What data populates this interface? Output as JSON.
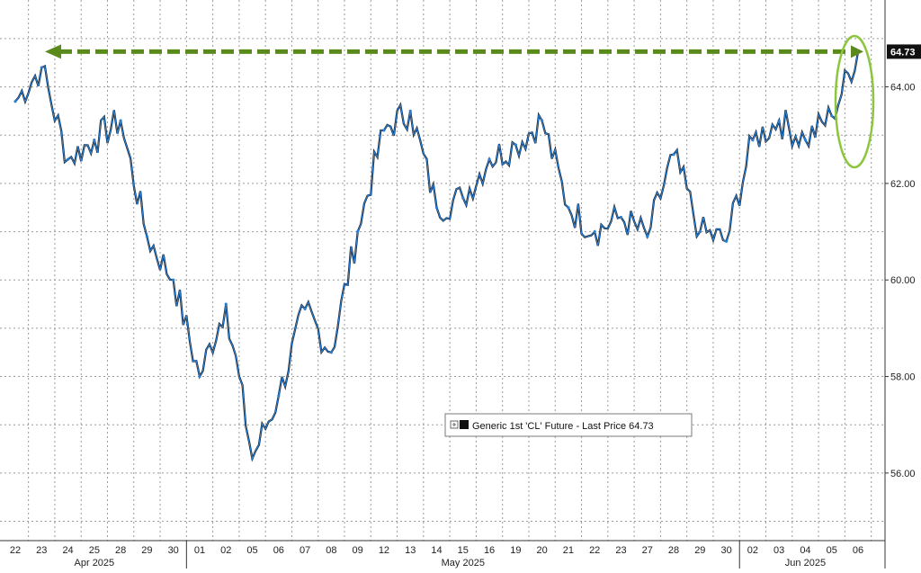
{
  "chart_data": {
    "type": "line",
    "title": "",
    "xlabel": "",
    "ylabel": "",
    "ylim": [
      54.6,
      65.8
    ],
    "y_ticks": [
      "56.00",
      "58.00",
      "60.00",
      "62.00",
      "64.00"
    ],
    "y_tick_values": [
      56,
      58,
      60,
      62,
      64
    ],
    "grid": true,
    "legend_position": "bottom-center",
    "categories": [
      "22",
      "23",
      "24",
      "25",
      "28",
      "29",
      "30",
      "01",
      "02",
      "05",
      "06",
      "07",
      "08",
      "09",
      "12",
      "13",
      "14",
      "15",
      "16",
      "19",
      "20",
      "21",
      "22",
      "23",
      "27",
      "28",
      "29",
      "30",
      "02",
      "03",
      "04",
      "05",
      "06"
    ],
    "months": [
      {
        "label": "Apr 2025",
        "center_index": 3
      },
      {
        "label": "May 2025",
        "center_index": 17
      },
      {
        "label": "Jun 2025",
        "center_index": 30
      }
    ],
    "month_boundaries_after_index": [
      6,
      27
    ],
    "series": [
      {
        "name": "Generic 1st 'CL' Future - Last Price",
        "values": [
          63.7,
          64.4,
          62.5,
          62.9,
          63.3,
          60.9,
          60.0,
          58.0,
          59.5,
          56.3,
          57.6,
          59.4,
          58.5,
          61.0,
          63.1,
          63.5,
          61.5,
          61.7,
          62.5,
          62.8,
          63.3,
          61.5,
          61.0,
          61.3,
          60.9,
          62.6,
          61.0,
          60.8,
          62.9,
          63.3,
          62.9,
          63.4,
          64.73
        ],
        "color": "#2a7fd4"
      }
    ],
    "last_price_label": "64.73",
    "legend_text": "Generic 1st 'CL' Future - Last Price 64.73",
    "annotations": [
      {
        "type": "dashed-arrow",
        "from_value": 64.73,
        "color": "#5a8a1c"
      },
      {
        "type": "ellipse-highlight",
        "color": "#8cc63f"
      }
    ]
  }
}
